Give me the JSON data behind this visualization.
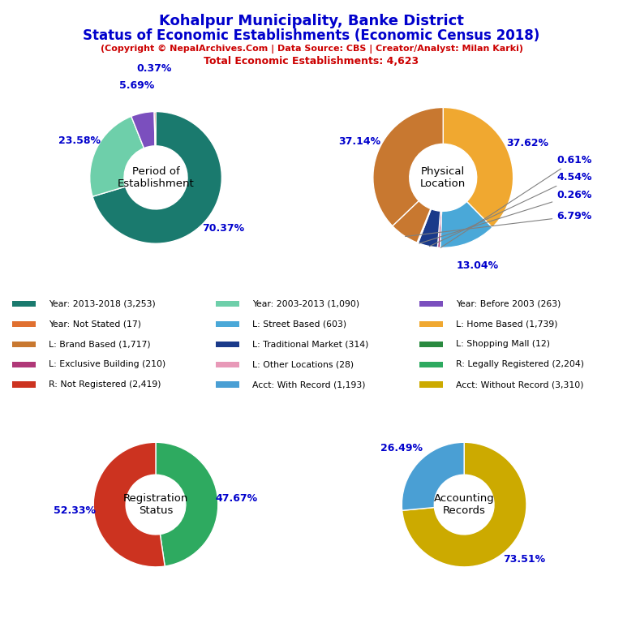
{
  "title_line1": "Kohalpur Municipality, Banke District",
  "title_line2": "Status of Economic Establishments (Economic Census 2018)",
  "subtitle": "(Copyright © NepalArchives.Com | Data Source: CBS | Creator/Analyst: Milan Karki)",
  "total_line": "Total Economic Establishments: 4,623",
  "pie1_title": "Period of\nEstablishment",
  "pie1_values": [
    70.37,
    23.58,
    5.69,
    0.37
  ],
  "pie1_colors": [
    "#1a7a6e",
    "#6ecfaa",
    "#7b4fbe",
    "#c0392b"
  ],
  "pie1_labels": [
    "70.37%",
    "23.58%",
    "5.69%",
    "0.37%"
  ],
  "pie2_title": "Physical\nLocation",
  "pie2_values": [
    37.62,
    13.04,
    0.61,
    4.54,
    0.26,
    6.79,
    37.14
  ],
  "pie2_colors": [
    "#f0a830",
    "#4aa8d8",
    "#b03878",
    "#1a3a8a",
    "#2ecc71",
    "#c87830",
    "#c87830"
  ],
  "pie2_labels": [
    "37.62%",
    "13.04%",
    "0.61%",
    "4.54%",
    "0.26%",
    "6.79%",
    "37.14%"
  ],
  "pie3_title": "Registration\nStatus",
  "pie3_values": [
    47.67,
    52.33
  ],
  "pie3_colors": [
    "#2eaa60",
    "#cc3320"
  ],
  "pie3_labels": [
    "47.67%",
    "52.33%"
  ],
  "pie4_title": "Accounting\nRecords",
  "pie4_values": [
    73.51,
    26.49
  ],
  "pie4_colors": [
    "#ccaa00",
    "#4a9fd4"
  ],
  "pie4_labels": [
    "73.51%",
    "26.49%"
  ],
  "legend_items": [
    {
      "label": "Year: 2013-2018 (3,253)",
      "color": "#1a7a6e"
    },
    {
      "label": "Year: 2003-2013 (1,090)",
      "color": "#6ecfaa"
    },
    {
      "label": "Year: Before 2003 (263)",
      "color": "#7b4fbe"
    },
    {
      "label": "Year: Not Stated (17)",
      "color": "#e07030"
    },
    {
      "label": "L: Street Based (603)",
      "color": "#4aa8d8"
    },
    {
      "label": "L: Home Based (1,739)",
      "color": "#f0a830"
    },
    {
      "label": "L: Brand Based (1,717)",
      "color": "#c87830"
    },
    {
      "label": "L: Traditional Market (314)",
      "color": "#1a3a8a"
    },
    {
      "label": "L: Shopping Mall (12)",
      "color": "#2a8a40"
    },
    {
      "label": "L: Exclusive Building (210)",
      "color": "#b03878"
    },
    {
      "label": "L: Other Locations (28)",
      "color": "#e899b8"
    },
    {
      "label": "R: Legally Registered (2,204)",
      "color": "#2eaa60"
    },
    {
      "label": "R: Not Registered (2,419)",
      "color": "#cc3320"
    },
    {
      "label": "Acct: With Record (1,193)",
      "color": "#4a9fd4"
    },
    {
      "label": "Acct: Without Record (3,310)",
      "color": "#ccaa00"
    }
  ],
  "bg_color": "#ffffff",
  "title_color": "#0000cc",
  "subtitle_color": "#cc0000",
  "label_color": "#0000cc",
  "center_text_color": "#000000"
}
